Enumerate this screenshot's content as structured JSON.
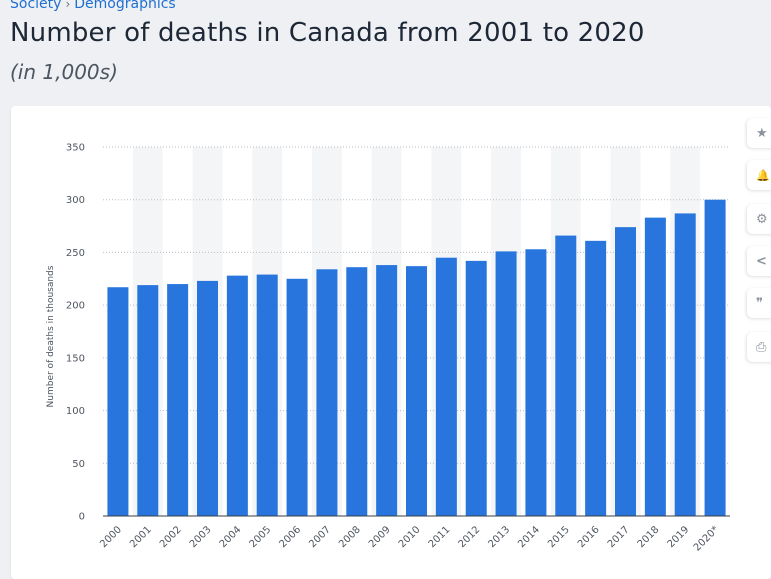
{
  "breadcrumb": {
    "items": [
      "Society",
      "Demographics"
    ],
    "separator": "›"
  },
  "title": "Number of deaths in Canada from 2001 to 2020",
  "subtitle": "(in 1,000s)",
  "toolbar": {
    "icons": [
      "star-icon",
      "bell-icon",
      "gear-icon",
      "share-icon",
      "quote-icon",
      "print-icon"
    ],
    "glyphs": [
      "★",
      "🔔",
      "⚙",
      "<",
      "❞",
      "⎙"
    ]
  },
  "colors": {
    "bar": "#2876dd",
    "band": "#f4f5f7",
    "grid": "#b9bec5",
    "axis_text": "#4f5660",
    "link": "#1f6fd1"
  },
  "chart_data": {
    "type": "bar",
    "categories": [
      "2000",
      "2001",
      "2002",
      "2003",
      "2004",
      "2005",
      "2006",
      "2007",
      "2008",
      "2009",
      "2010",
      "2011",
      "2012",
      "2013",
      "2014",
      "2015",
      "2016",
      "2017",
      "2018",
      "2019",
      "2020*"
    ],
    "values": [
      217,
      219,
      220,
      223,
      228,
      229,
      225,
      234,
      236,
      238,
      237,
      245,
      242,
      251,
      253,
      266,
      261,
      274,
      283,
      287,
      300
    ],
    "ylabel": "Number of deaths in thousands",
    "xlabel": "",
    "ylim": [
      0,
      350
    ],
    "yticks": [
      0,
      50,
      100,
      150,
      200,
      250,
      300,
      350
    ],
    "grid": true
  }
}
